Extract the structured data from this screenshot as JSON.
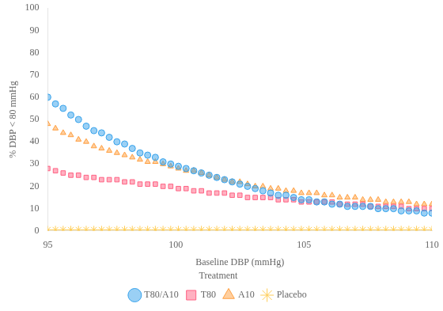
{
  "chart_data": {
    "type": "scatter",
    "xlabel": "Baseline DBP (mmHg)",
    "ylabel": "% DBP < 80 mmHg",
    "xlim": [
      95,
      110
    ],
    "ylim": [
      0,
      100
    ],
    "xticks": [
      95,
      100,
      105,
      110
    ],
    "yticks": [
      0,
      10,
      20,
      30,
      40,
      50,
      60,
      70,
      80,
      90,
      100
    ],
    "grid": false,
    "legend": "bottom",
    "legend_title": "Treatment",
    "x": [
      95.0,
      95.3,
      95.6,
      95.9,
      96.2,
      96.5,
      96.8,
      97.1,
      97.4,
      97.7,
      98.0,
      98.3,
      98.6,
      98.9,
      99.2,
      99.5,
      99.8,
      100.1,
      100.4,
      100.7,
      101.0,
      101.3,
      101.6,
      101.9,
      102.2,
      102.5,
      102.8,
      103.1,
      103.4,
      103.7,
      104.0,
      104.3,
      104.6,
      104.9,
      105.2,
      105.5,
      105.8,
      106.1,
      106.4,
      106.7,
      107.0,
      107.3,
      107.6,
      107.9,
      108.2,
      108.5,
      108.8,
      109.1,
      109.4,
      109.7,
      110.0
    ],
    "series": [
      {
        "name": "T80/A10",
        "marker": "circle",
        "values": [
          60,
          57,
          55,
          52,
          50,
          47,
          45,
          44,
          42,
          40,
          39,
          37,
          35,
          34,
          33,
          31,
          30,
          29,
          28,
          27,
          26,
          25,
          24,
          23,
          22,
          21,
          20,
          19,
          18,
          17,
          16,
          16,
          15,
          14,
          14,
          13,
          13,
          12,
          12,
          11,
          11,
          11,
          11,
          10,
          10,
          10,
          9,
          9,
          9,
          8,
          8
        ]
      },
      {
        "name": "T80",
        "marker": "square",
        "values": [
          28,
          27,
          26,
          25,
          25,
          24,
          24,
          23,
          23,
          23,
          22,
          22,
          21,
          21,
          21,
          20,
          20,
          19,
          19,
          18,
          18,
          17,
          17,
          17,
          16,
          16,
          15,
          15,
          15,
          15,
          14,
          14,
          14,
          13,
          13,
          13,
          13,
          13,
          12,
          12,
          12,
          12,
          11,
          11,
          11,
          11,
          11,
          10,
          10,
          10,
          10
        ]
      },
      {
        "name": "A10",
        "marker": "triangle",
        "values": [
          48,
          46,
          44,
          43,
          41,
          40,
          38,
          37,
          36,
          35,
          34,
          33,
          32,
          31,
          31,
          30,
          29,
          28,
          27,
          27,
          26,
          25,
          24,
          23,
          22,
          22,
          21,
          20,
          20,
          19,
          19,
          18,
          18,
          17,
          17,
          17,
          16,
          16,
          15,
          15,
          15,
          14,
          14,
          14,
          13,
          13,
          13,
          13,
          12,
          12,
          12
        ]
      },
      {
        "name": "Placebo",
        "marker": "star",
        "values": [
          0.5,
          0.5,
          0.5,
          0.5,
          0.5,
          0.5,
          0.5,
          0.5,
          0.5,
          0.5,
          0.5,
          0.5,
          0.5,
          0.5,
          0.5,
          0.5,
          0.5,
          0.5,
          0.5,
          0.5,
          0.5,
          0.5,
          0.5,
          0.5,
          0.5,
          0.5,
          0.5,
          0.5,
          0.5,
          0.5,
          0.5,
          0.5,
          0.5,
          0.5,
          0.5,
          0.5,
          0.5,
          0.5,
          0.5,
          0.5,
          0.5,
          0.5,
          0.5,
          0.5,
          0.5,
          0.5,
          0.5,
          0.5,
          0.5,
          0.5,
          0.5
        ]
      }
    ]
  }
}
